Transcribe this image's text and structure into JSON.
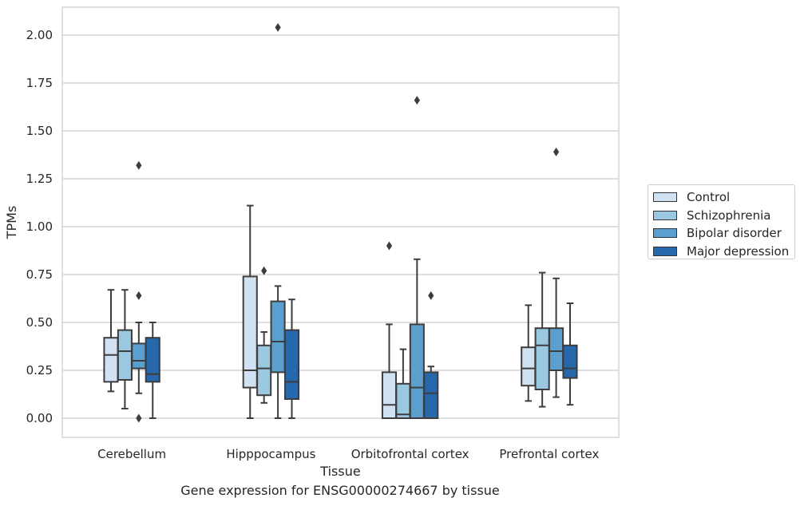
{
  "chart_data": {
    "type": "box",
    "categories": [
      "Cerebellum",
      "Hipppocampus",
      "Orbitofrontal cortex",
      "Prefrontal cortex"
    ],
    "xlabel": "Tissue",
    "ylabel": "TPMs",
    "ylim": [
      -0.1,
      2.15
    ],
    "yticks": [
      0.0,
      0.25,
      0.5,
      0.75,
      1.0,
      1.25,
      1.5,
      1.75,
      2.0
    ],
    "ytick_labels": [
      "0.00",
      "0.25",
      "0.50",
      "0.75",
      "1.00",
      "1.25",
      "1.50",
      "1.75",
      "2.00"
    ],
    "grid": true,
    "legend_position": "right",
    "series": [
      {
        "name": "Control",
        "color": "#d0e1f2",
        "boxes": [
          {
            "whisker_low": 0.14,
            "q1": 0.19,
            "median": 0.33,
            "q3": 0.42,
            "whisker_high": 0.67,
            "outliers": []
          },
          {
            "whisker_low": 0.0,
            "q1": 0.16,
            "median": 0.25,
            "q3": 0.74,
            "whisker_high": 1.11,
            "outliers": []
          },
          {
            "whisker_low": 0.0,
            "q1": 0.0,
            "median": 0.07,
            "q3": 0.24,
            "whisker_high": 0.49,
            "outliers": [
              0.9
            ]
          },
          {
            "whisker_low": 0.09,
            "q1": 0.17,
            "median": 0.26,
            "q3": 0.37,
            "whisker_high": 0.59,
            "outliers": []
          }
        ]
      },
      {
        "name": "Schizophrenia",
        "color": "#9ac8e0",
        "boxes": [
          {
            "whisker_low": 0.05,
            "q1": 0.2,
            "median": 0.35,
            "q3": 0.46,
            "whisker_high": 0.67,
            "outliers": []
          },
          {
            "whisker_low": 0.08,
            "q1": 0.12,
            "median": 0.26,
            "q3": 0.38,
            "whisker_high": 0.45,
            "outliers": [
              0.77
            ]
          },
          {
            "whisker_low": 0.0,
            "q1": 0.0,
            "median": 0.02,
            "q3": 0.18,
            "whisker_high": 0.36,
            "outliers": []
          },
          {
            "whisker_low": 0.06,
            "q1": 0.15,
            "median": 0.38,
            "q3": 0.47,
            "whisker_high": 0.76,
            "outliers": []
          }
        ]
      },
      {
        "name": "Bipolar disorder",
        "color": "#5a9fcd",
        "boxes": [
          {
            "whisker_low": 0.13,
            "q1": 0.26,
            "median": 0.3,
            "q3": 0.39,
            "whisker_high": 0.5,
            "outliers": [
              1.32,
              0.64,
              0.0
            ]
          },
          {
            "whisker_low": 0.0,
            "q1": 0.24,
            "median": 0.4,
            "q3": 0.61,
            "whisker_high": 0.69,
            "outliers": [
              2.04
            ]
          },
          {
            "whisker_low": 0.0,
            "q1": 0.0,
            "median": 0.16,
            "q3": 0.49,
            "whisker_high": 0.83,
            "outliers": [
              1.66
            ]
          },
          {
            "whisker_low": 0.11,
            "q1": 0.25,
            "median": 0.35,
            "q3": 0.47,
            "whisker_high": 0.73,
            "outliers": [
              1.39
            ]
          }
        ]
      },
      {
        "name": "Major depression",
        "color": "#2767ac",
        "boxes": [
          {
            "whisker_low": 0.0,
            "q1": 0.19,
            "median": 0.23,
            "q3": 0.42,
            "whisker_high": 0.5,
            "outliers": []
          },
          {
            "whisker_low": 0.0,
            "q1": 0.1,
            "median": 0.19,
            "q3": 0.46,
            "whisker_high": 0.62,
            "outliers": []
          },
          {
            "whisker_low": 0.0,
            "q1": 0.0,
            "median": 0.13,
            "q3": 0.24,
            "whisker_high": 0.27,
            "outliers": [
              0.64
            ]
          },
          {
            "whisker_low": 0.07,
            "q1": 0.21,
            "median": 0.26,
            "q3": 0.38,
            "whisker_high": 0.6,
            "outliers": []
          }
        ]
      }
    ],
    "caption": "Gene expression for ENSG00000274667 by tissue"
  }
}
